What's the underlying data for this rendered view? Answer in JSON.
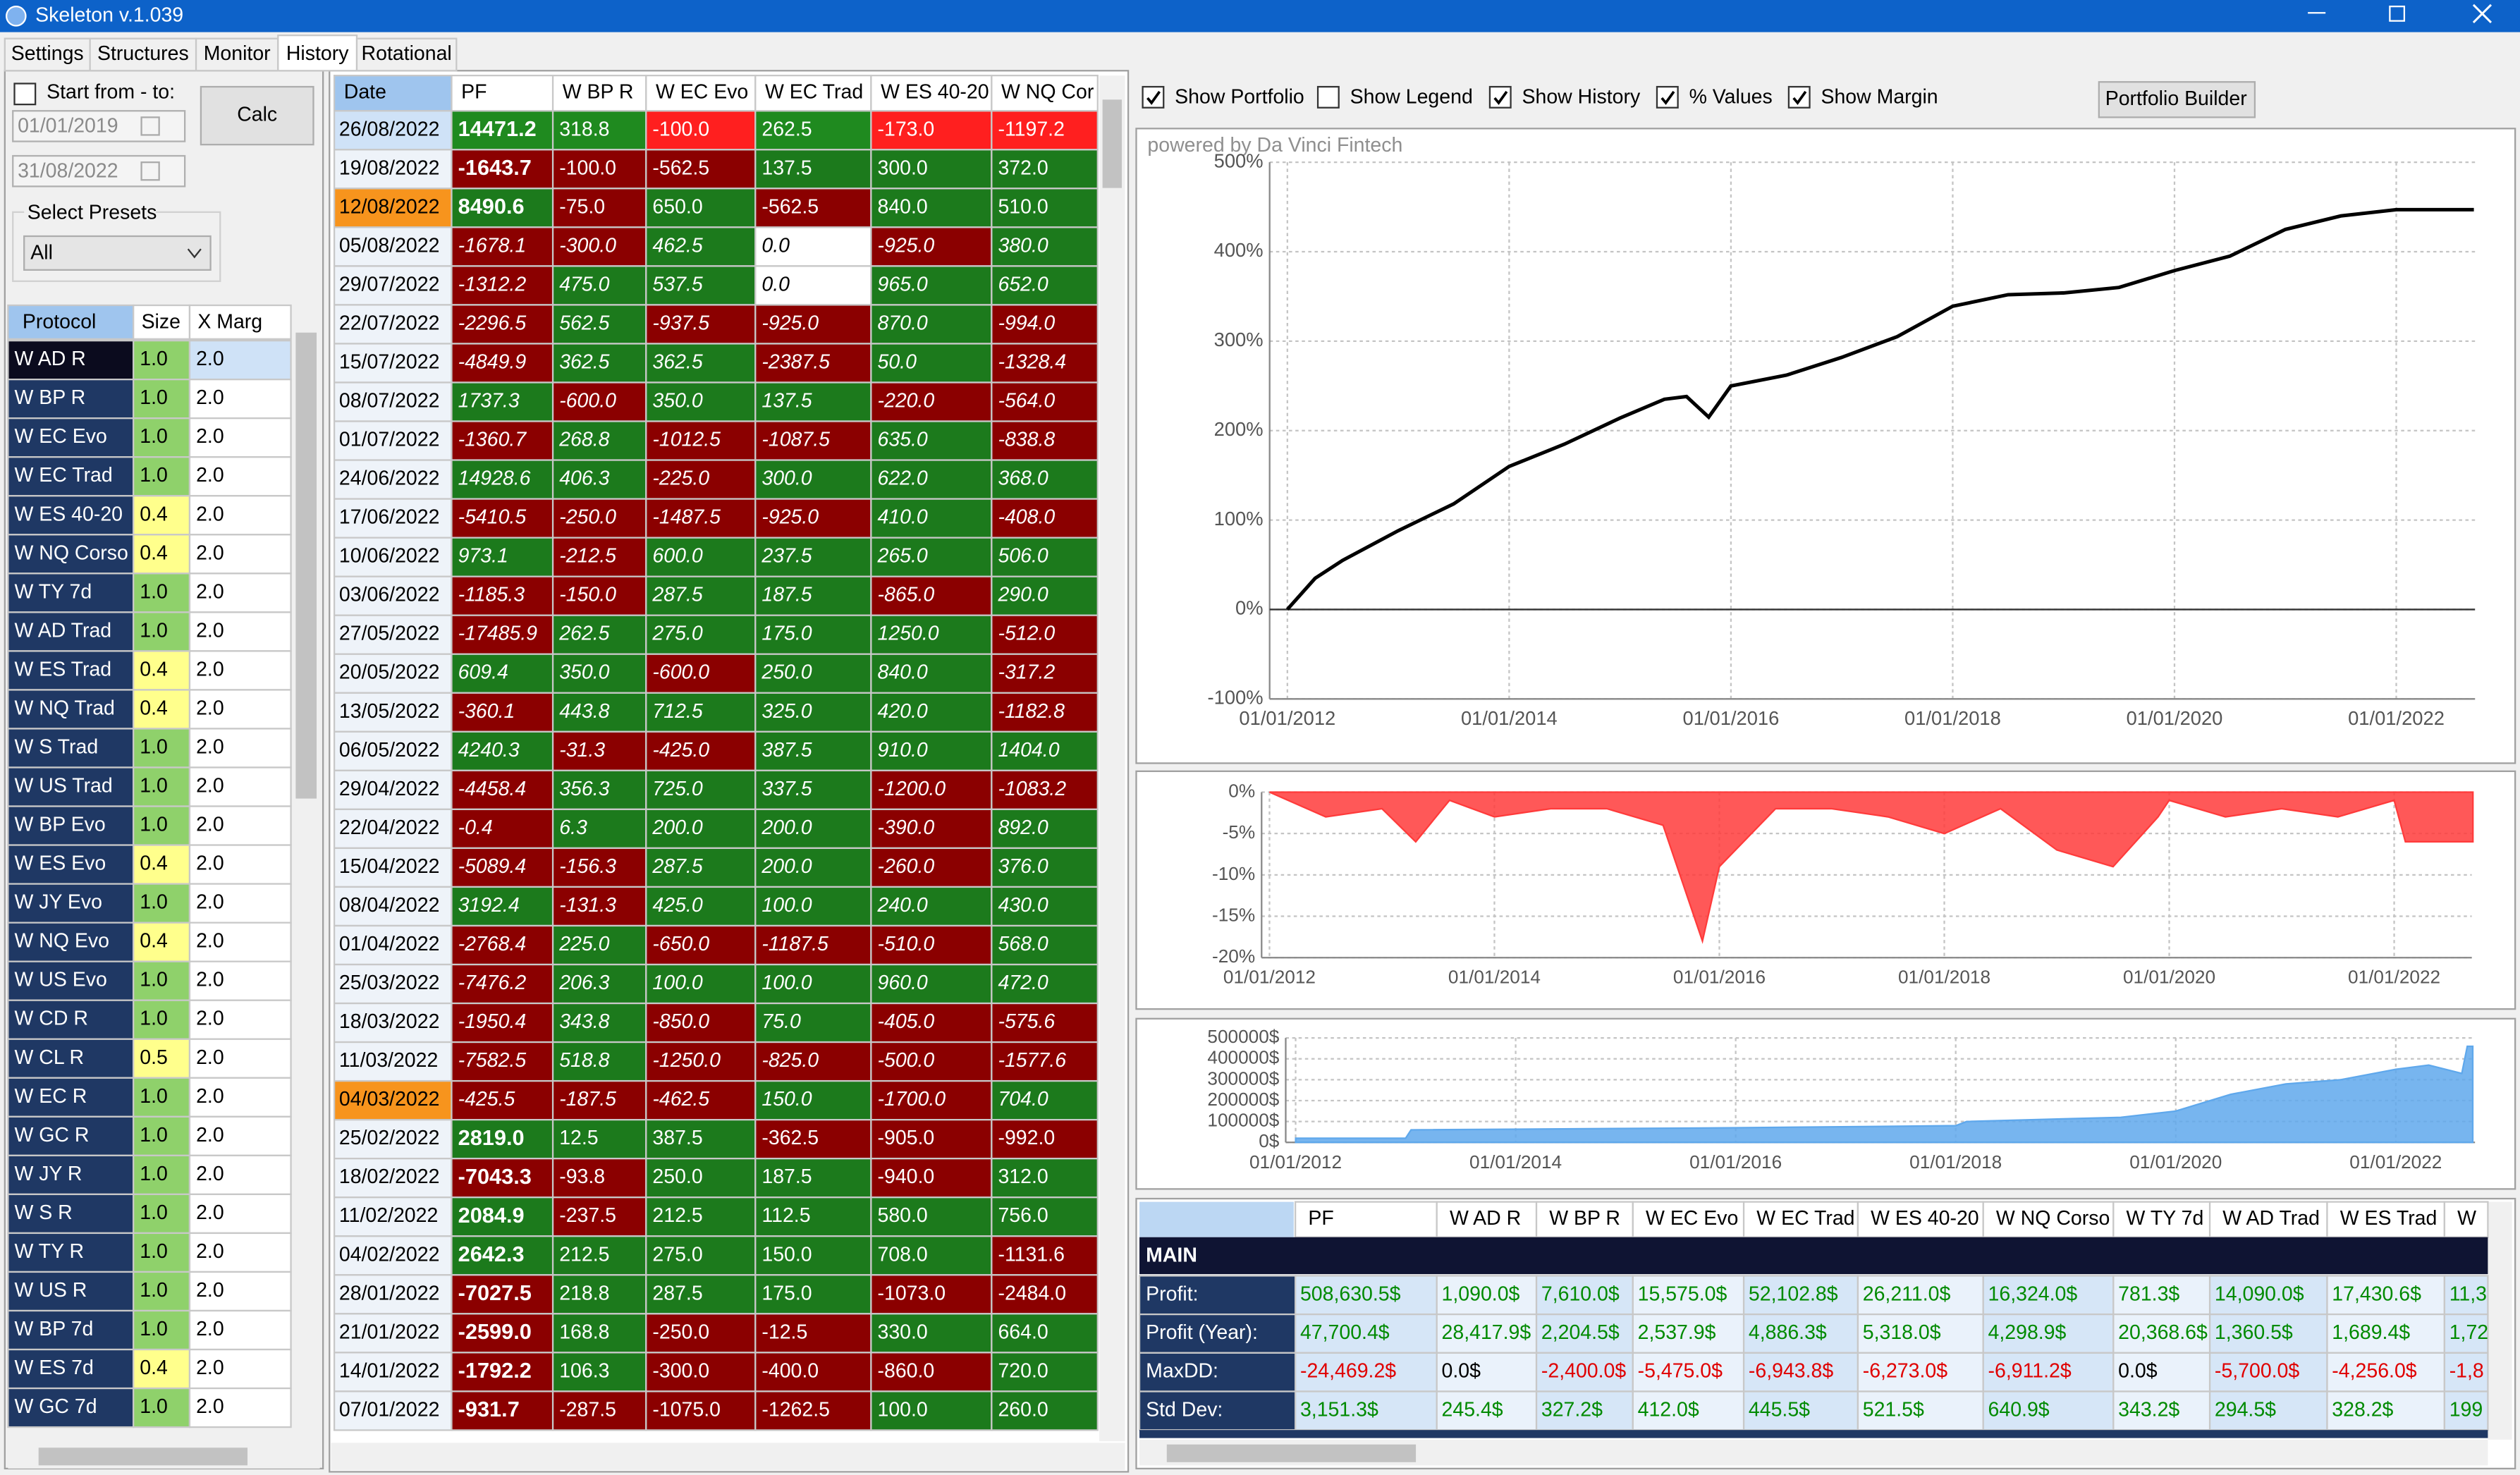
{
  "window": {
    "title": "Skeleton v.1.039"
  },
  "tabs": [
    "Settings",
    "Structures",
    "Monitor",
    "History",
    "Rotational"
  ],
  "active_tab": "History",
  "filters": {
    "start_from_label": "Start from - to:",
    "start_from_checked": false,
    "date_from": "01/01/2019",
    "date_to": "31/08/2022",
    "calc_button": "Calc",
    "presets_label": "Select Presets",
    "preset": "All"
  },
  "protocols": {
    "headers": [
      "Protocol",
      "Size",
      "X Marg"
    ],
    "selected_row": 0,
    "rows": [
      [
        "W AD R",
        "1.0",
        "2.0"
      ],
      [
        "W BP R",
        "1.0",
        "2.0"
      ],
      [
        "W EC Evo",
        "1.0",
        "2.0"
      ],
      [
        "W EC Trad",
        "1.0",
        "2.0"
      ],
      [
        "W ES 40-20",
        "0.4",
        "2.0"
      ],
      [
        "W NQ Corso",
        "0.4",
        "2.0"
      ],
      [
        "W TY 7d",
        "1.0",
        "2.0"
      ],
      [
        "W AD Trad",
        "1.0",
        "2.0"
      ],
      [
        "W ES Trad",
        "0.4",
        "2.0"
      ],
      [
        "W NQ Trad",
        "0.4",
        "2.0"
      ],
      [
        "W S Trad",
        "1.0",
        "2.0"
      ],
      [
        "W US Trad",
        "1.0",
        "2.0"
      ],
      [
        "W BP Evo",
        "1.0",
        "2.0"
      ],
      [
        "W ES Evo",
        "0.4",
        "2.0"
      ],
      [
        "W JY Evo",
        "1.0",
        "2.0"
      ],
      [
        "W NQ Evo",
        "0.4",
        "2.0"
      ],
      [
        "W US Evo",
        "1.0",
        "2.0"
      ],
      [
        "W CD R",
        "1.0",
        "2.0"
      ],
      [
        "W CL R",
        "0.5",
        "2.0"
      ],
      [
        "W EC R",
        "1.0",
        "2.0"
      ],
      [
        "W GC R",
        "1.0",
        "2.0"
      ],
      [
        "W JY R",
        "1.0",
        "2.0"
      ],
      [
        "W S R",
        "1.0",
        "2.0"
      ],
      [
        "W TY R",
        "1.0",
        "2.0"
      ],
      [
        "W US R",
        "1.0",
        "2.0"
      ],
      [
        "W BP 7d",
        "1.0",
        "2.0"
      ],
      [
        "W ES 7d",
        "0.4",
        "2.0"
      ],
      [
        "W GC 7d",
        "1.0",
        "2.0"
      ]
    ]
  },
  "history": {
    "headers": [
      "Date",
      "PF",
      "W BP R",
      "W EC Evo",
      "W EC Trad",
      "W ES 40-20",
      "W NQ Cor"
    ],
    "rows": [
      {
        "date": "26/08/2022",
        "values": [
          "14471.2",
          "318.8",
          "-100.0",
          "262.5",
          "-173.0",
          "-1197.2"
        ],
        "selected": true
      },
      {
        "date": "19/08/2022",
        "values": [
          "-1643.7",
          "-100.0",
          "-562.5",
          "137.5",
          "300.0",
          "372.0"
        ]
      },
      {
        "date": "12/08/2022",
        "values": [
          "8490.6",
          "-75.0",
          "650.0",
          "-562.5",
          "840.0",
          "510.0"
        ],
        "date_color": "#f7941d"
      },
      {
        "date": "05/08/2022",
        "values": [
          "-1678.1",
          "-300.0",
          "462.5",
          "0.0",
          "-925.0",
          "380.0"
        ],
        "italic": true
      },
      {
        "date": "29/07/2022",
        "values": [
          "-1312.2",
          "475.0",
          "537.5",
          "0.0",
          "965.0",
          "652.0"
        ],
        "italic": true
      },
      {
        "date": "22/07/2022",
        "values": [
          "-2296.5",
          "562.5",
          "-937.5",
          "-925.0",
          "870.0",
          "-994.0"
        ],
        "italic": true
      },
      {
        "date": "15/07/2022",
        "values": [
          "-4849.9",
          "362.5",
          "362.5",
          "-2387.5",
          "50.0",
          "-1328.4"
        ],
        "italic": true
      },
      {
        "date": "08/07/2022",
        "values": [
          "1737.3",
          "-600.0",
          "350.0",
          "137.5",
          "-220.0",
          "-564.0"
        ],
        "italic": true
      },
      {
        "date": "01/07/2022",
        "values": [
          "-1360.7",
          "268.8",
          "-1012.5",
          "-1087.5",
          "635.0",
          "-838.8"
        ],
        "italic": true
      },
      {
        "date": "24/06/2022",
        "values": [
          "14928.6",
          "406.3",
          "-225.0",
          "300.0",
          "622.0",
          "368.0"
        ],
        "italic": true
      },
      {
        "date": "17/06/2022",
        "values": [
          "-5410.5",
          "-250.0",
          "-1487.5",
          "-925.0",
          "410.0",
          "-408.0"
        ],
        "italic": true
      },
      {
        "date": "10/06/2022",
        "values": [
          "973.1",
          "-212.5",
          "600.0",
          "237.5",
          "265.0",
          "506.0"
        ],
        "italic": true
      },
      {
        "date": "03/06/2022",
        "values": [
          "-1185.3",
          "-150.0",
          "287.5",
          "187.5",
          "-865.0",
          "290.0"
        ],
        "italic": true
      },
      {
        "date": "27/05/2022",
        "values": [
          "-17485.9",
          "262.5",
          "275.0",
          "175.0",
          "1250.0",
          "-512.0"
        ],
        "italic": true
      },
      {
        "date": "20/05/2022",
        "values": [
          "609.4",
          "350.0",
          "-600.0",
          "250.0",
          "840.0",
          "-317.2"
        ],
        "italic": true
      },
      {
        "date": "13/05/2022",
        "values": [
          "-360.1",
          "443.8",
          "712.5",
          "325.0",
          "420.0",
          "-1182.8"
        ],
        "italic": true
      },
      {
        "date": "06/05/2022",
        "values": [
          "4240.3",
          "-31.3",
          "-425.0",
          "387.5",
          "910.0",
          "1404.0"
        ],
        "italic": true
      },
      {
        "date": "29/04/2022",
        "values": [
          "-4458.4",
          "356.3",
          "725.0",
          "337.5",
          "-1200.0",
          "-1083.2"
        ],
        "italic": true
      },
      {
        "date": "22/04/2022",
        "values": [
          "-0.4",
          "6.3",
          "200.0",
          "200.0",
          "-390.0",
          "892.0"
        ],
        "italic": true
      },
      {
        "date": "15/04/2022",
        "values": [
          "-5089.4",
          "-156.3",
          "287.5",
          "200.0",
          "-260.0",
          "376.0"
        ],
        "italic": true
      },
      {
        "date": "08/04/2022",
        "values": [
          "3192.4",
          "-131.3",
          "425.0",
          "100.0",
          "240.0",
          "430.0"
        ],
        "italic": true
      },
      {
        "date": "01/04/2022",
        "values": [
          "-2768.4",
          "225.0",
          "-650.0",
          "-1187.5",
          "-510.0",
          "568.0"
        ],
        "italic": true
      },
      {
        "date": "25/03/2022",
        "values": [
          "-7476.2",
          "206.3",
          "100.0",
          "100.0",
          "960.0",
          "472.0"
        ],
        "italic": true
      },
      {
        "date": "18/03/2022",
        "values": [
          "-1950.4",
          "343.8",
          "-850.0",
          "75.0",
          "-405.0",
          "-575.6"
        ],
        "italic": true
      },
      {
        "date": "11/03/2022",
        "values": [
          "-7582.5",
          "518.8",
          "-1250.0",
          "-825.0",
          "-500.0",
          "-1577.6"
        ],
        "italic": true
      },
      {
        "date": "04/03/2022",
        "values": [
          "-425.5",
          "-187.5",
          "-462.5",
          "150.0",
          "-1700.0",
          "704.0"
        ],
        "italic": true,
        "date_color": "#f7941d"
      },
      {
        "date": "25/02/2022",
        "values": [
          "2819.0",
          "12.5",
          "387.5",
          "-362.5",
          "-905.0",
          "-992.0"
        ]
      },
      {
        "date": "18/02/2022",
        "values": [
          "-7043.3",
          "-93.8",
          "250.0",
          "187.5",
          "-940.0",
          "312.0"
        ]
      },
      {
        "date": "11/02/2022",
        "values": [
          "2084.9",
          "-237.5",
          "212.5",
          "112.5",
          "580.0",
          "756.0"
        ]
      },
      {
        "date": "04/02/2022",
        "values": [
          "2642.3",
          "212.5",
          "275.0",
          "150.0",
          "708.0",
          "-1131.6"
        ]
      },
      {
        "date": "28/01/2022",
        "values": [
          "-7027.5",
          "218.8",
          "287.5",
          "175.0",
          "-1073.0",
          "-2484.0"
        ]
      },
      {
        "date": "21/01/2022",
        "values": [
          "-2599.0",
          "168.8",
          "-250.0",
          "-12.5",
          "330.0",
          "664.0"
        ]
      },
      {
        "date": "14/01/2022",
        "values": [
          "-1792.2",
          "106.3",
          "-300.0",
          "-400.0",
          "-860.0",
          "720.0"
        ]
      },
      {
        "date": "07/01/2022",
        "values": [
          "-931.7",
          "-287.5",
          "-1075.0",
          "-1262.5",
          "100.0",
          "260.0"
        ]
      }
    ]
  },
  "chart_options": {
    "checkboxes": [
      {
        "label": "Show Portfolio",
        "checked": true
      },
      {
        "label": "Show Legend",
        "checked": false
      },
      {
        "label": "Show History",
        "checked": true
      },
      {
        "label": "% Values",
        "checked": true
      },
      {
        "label": "Show Margin",
        "checked": true
      }
    ],
    "button": "Portfolio Builder",
    "watermark": "powered by Da Vinci Fintech"
  },
  "chart_data": [
    {
      "type": "line",
      "grid": true,
      "xlim": [
        2011.84,
        2022.71
      ],
      "xticks": [
        {
          "value": 2012,
          "label": "01/01/2012"
        },
        {
          "value": 2014,
          "label": "01/01/2014"
        },
        {
          "value": 2016,
          "label": "01/01/2016"
        },
        {
          "value": 2018,
          "label": "01/01/2018"
        },
        {
          "value": 2020,
          "label": "01/01/2020"
        },
        {
          "value": 2022,
          "label": "01/01/2022"
        }
      ],
      "ylim": [
        -100,
        500
      ],
      "yticks": [
        {
          "value": -100,
          "label": "-100%"
        },
        {
          "value": 0,
          "label": "0%"
        },
        {
          "value": 100,
          "label": "100%"
        },
        {
          "value": 200,
          "label": "200%"
        },
        {
          "value": 300,
          "label": "300%"
        },
        {
          "value": 400,
          "label": "400%"
        },
        {
          "value": 500,
          "label": "500%"
        }
      ],
      "x": [
        2012.0,
        2012.25,
        2012.5,
        2013,
        2013.5,
        2014,
        2014.5,
        2015,
        2015.4,
        2015.6,
        2015.8,
        2016,
        2016.5,
        2017,
        2017.5,
        2018,
        2018.5,
        2019,
        2019.5,
        2020,
        2020.5,
        2021,
        2021.5,
        2022,
        2022.4,
        2022.7
      ],
      "series": [
        {
          "color": "#000000",
          "values": [
            0,
            35,
            55,
            88,
            118,
            160,
            185,
            214,
            235,
            238,
            215,
            250,
            262,
            282,
            305,
            339,
            352,
            354,
            360,
            379,
            395,
            425,
            440,
            447,
            447,
            447
          ]
        }
      ]
    },
    {
      "type": "area",
      "grid": true,
      "xlim": [
        2011.93,
        2022.69
      ],
      "xticks": [
        {
          "value": 2012,
          "label": "01/01/2012"
        },
        {
          "value": 2014,
          "label": "01/01/2014"
        },
        {
          "value": 2016,
          "label": "01/01/2016"
        },
        {
          "value": 2018,
          "label": "01/01/2018"
        },
        {
          "value": 2020,
          "label": "01/01/2020"
        },
        {
          "value": 2022,
          "label": "01/01/2022"
        }
      ],
      "ylim": [
        -20,
        0
      ],
      "yticks": [
        {
          "value": -20,
          "label": "-20%"
        },
        {
          "value": -15,
          "label": "-15%"
        },
        {
          "value": -10,
          "label": "-10%"
        },
        {
          "value": -5,
          "label": "-5%"
        },
        {
          "value": 0,
          "label": "0%"
        }
      ],
      "x": [
        2012,
        2012.5,
        2013,
        2013.3,
        2013.6,
        2014,
        2014.5,
        2015,
        2015.5,
        2015.7,
        2015.85,
        2016,
        2016.5,
        2017,
        2017.5,
        2018,
        2018.5,
        2019,
        2019.5,
        2019.9,
        2020,
        2020.5,
        2021,
        2021.5,
        2022,
        2022.1,
        2022.7
      ],
      "series": [
        {
          "color": "#ff3b3b",
          "values": [
            0,
            -3,
            -2,
            -6,
            -1,
            -3,
            -2,
            -2,
            -4,
            -12,
            -18,
            -9,
            -2,
            -2,
            -3,
            -5,
            -2,
            -7,
            -9,
            -3,
            -1,
            -3,
            -2,
            -3,
            -1,
            -6,
            -6
          ]
        }
      ]
    },
    {
      "type": "area",
      "grid": true,
      "xlim": [
        2011.91,
        2022.72
      ],
      "xticks": [
        {
          "value": 2012,
          "label": "01/01/2012"
        },
        {
          "value": 2014,
          "label": "01/01/2014"
        },
        {
          "value": 2016,
          "label": "01/01/2016"
        },
        {
          "value": 2018,
          "label": "01/01/2018"
        },
        {
          "value": 2020,
          "label": "01/01/2020"
        },
        {
          "value": 2022,
          "label": "01/01/2022"
        }
      ],
      "ylim": [
        0,
        500000
      ],
      "yticks": [
        {
          "value": 0,
          "label": "0$"
        },
        {
          "value": 100000,
          "label": "100000$"
        },
        {
          "value": 200000,
          "label": "200000$"
        },
        {
          "value": 300000,
          "label": "300000$"
        },
        {
          "value": 400000,
          "label": "400000$"
        },
        {
          "value": 500000,
          "label": "500000$"
        }
      ],
      "x": [
        2012,
        2013.0,
        2013.05,
        2016,
        2018,
        2018.1,
        2019.5,
        2020,
        2020.5,
        2021,
        2021.5,
        2022,
        2022.3,
        2022.6,
        2022.65,
        2022.7
      ],
      "series": [
        {
          "color": "#5fa8ec",
          "values": [
            20000,
            20000,
            60000,
            70000,
            80000,
            100000,
            120000,
            150000,
            230000,
            280000,
            300000,
            350000,
            370000,
            330000,
            460000,
            460000
          ]
        }
      ]
    }
  ],
  "stats": {
    "headers": [
      "PF",
      "W AD R",
      "W BP R",
      "W EC Evo",
      "W EC Trad",
      "W ES 40-20",
      "W NQ Corso",
      "W TY 7d",
      "W AD Trad",
      "W ES Trad",
      "W"
    ],
    "section": "MAIN",
    "rows": [
      {
        "label": "Profit:",
        "values": [
          "508,630.5$",
          "1,090.0$",
          "7,610.0$",
          "15,575.0$",
          "52,102.8$",
          "26,211.0$",
          "16,324.0$",
          "781.3$",
          "14,090.0$",
          "17,430.6$",
          "11,3"
        ]
      },
      {
        "label": "Profit (Year):",
        "values": [
          "47,700.4$",
          "28,417.9$",
          "2,204.5$",
          "2,537.9$",
          "4,886.3$",
          "5,318.0$",
          "4,298.9$",
          "20,368.6$",
          "1,360.5$",
          "1,689.4$",
          "1,72"
        ]
      },
      {
        "label": "MaxDD:",
        "values": [
          "-24,469.2$",
          "0.0$",
          "-2,400.0$",
          "-5,475.0$",
          "-6,943.8$",
          "-6,273.0$",
          "-6,911.2$",
          "0.0$",
          "-5,700.0$",
          "-4,256.0$",
          "-1,8"
        ]
      },
      {
        "label": "Std Dev:",
        "values": [
          "3,151.3$",
          "245.4$",
          "327.2$",
          "412.0$",
          "445.5$",
          "521.5$",
          "640.9$",
          "343.2$",
          "294.5$",
          "328.2$",
          "199"
        ]
      }
    ]
  }
}
